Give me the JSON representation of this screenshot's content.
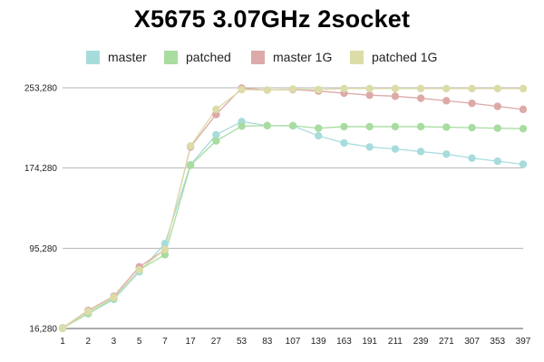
{
  "chart_data": {
    "type": "line",
    "title": "X5675 3.07GHz 2socket",
    "xlabel": "",
    "ylabel": "",
    "categories": [
      "1",
      "2",
      "3",
      "5",
      "7",
      "17",
      "27",
      "53",
      "83",
      "107",
      "139",
      "163",
      "191",
      "211",
      "239",
      "271",
      "307",
      "353",
      "397"
    ],
    "yticks": [
      16280,
      95280,
      174280,
      253280
    ],
    "ytick_labels": [
      "16,280",
      "95,280",
      "174,280",
      "253,280"
    ],
    "ylim": [
      16280,
      253280
    ],
    "grid": true,
    "legend_position": "top",
    "series": [
      {
        "name": "master",
        "color": "#a8dcdc",
        "values": [
          16900,
          30800,
          45000,
          72000,
          100000,
          177500,
          207000,
          220000,
          216000,
          215800,
          206000,
          199000,
          195000,
          193000,
          190500,
          188000,
          184000,
          181000,
          178000
        ]
      },
      {
        "name": "patched",
        "color": "#a8dca0",
        "values": [
          16400,
          31200,
          46000,
          74000,
          89000,
          177000,
          201000,
          215500,
          216000,
          216000,
          213500,
          215000,
          215000,
          215000,
          215000,
          214500,
          214000,
          213500,
          213000
        ]
      },
      {
        "name": "master 1G",
        "color": "#dcaaa8",
        "values": [
          16800,
          34000,
          48000,
          77000,
          94000,
          195000,
          227000,
          253000,
          251000,
          251500,
          250000,
          248000,
          246000,
          245000,
          243000,
          240500,
          238000,
          235000,
          232000
        ]
      },
      {
        "name": "patched 1G",
        "color": "#dcdca8",
        "values": [
          16600,
          33000,
          47000,
          74000,
          94000,
          196000,
          232000,
          251500,
          251000,
          252000,
          251500,
          252500,
          252500,
          252500,
          252500,
          252500,
          252500,
          252500,
          252500
        ]
      }
    ]
  }
}
